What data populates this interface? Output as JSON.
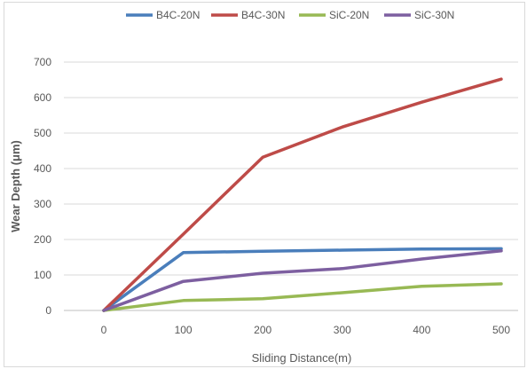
{
  "chart_data": {
    "type": "line",
    "title": "",
    "xlabel": "Sliding Distance(m)",
    "ylabel": "Wear Depth (μm)",
    "x": [
      0,
      100,
      200,
      300,
      400,
      500
    ],
    "xlim": [
      0,
      500
    ],
    "ylim": [
      0,
      700
    ],
    "y_ticks": [
      "0",
      "100",
      "200",
      "300",
      "400",
      "500",
      "600",
      "700"
    ],
    "x_ticks": [
      "0",
      "100",
      "200",
      "300",
      "400",
      "500"
    ],
    "grid": "horizontal",
    "legend_position": "top",
    "series": [
      {
        "name": "B4C-20N",
        "color": "#4a7ebb",
        "values": [
          0,
          163,
          167,
          170,
          173,
          174
        ]
      },
      {
        "name": "B4C-30N",
        "color": "#be4b48",
        "values": [
          0,
          215,
          432,
          517,
          587,
          652
        ]
      },
      {
        "name": "SiC-20N",
        "color": "#98b954",
        "values": [
          0,
          28,
          33,
          50,
          68,
          75
        ]
      },
      {
        "name": "SiC-30N",
        "color": "#7d5fa0",
        "values": [
          0,
          82,
          105,
          118,
          145,
          168
        ]
      }
    ]
  }
}
